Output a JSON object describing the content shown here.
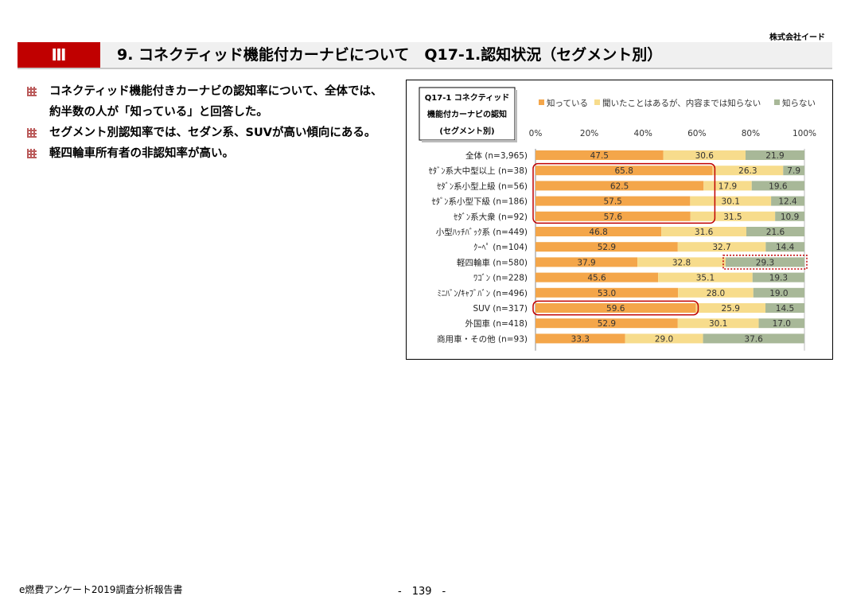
{
  "header": {
    "company": "株式会社イード",
    "section_no": "Ⅲ",
    "title": "9. コネクティッド機能付カーナビについて　Q17-1.認知状況（セグメント別）"
  },
  "bullets": [
    "コネクティッド機能付きカーナビの認知率について、全体では、約半数の人が「知っている」と回答した。",
    "セグメント別認知率では、セダン系、SUVが高い傾向にある。",
    "軽四輪車所有者の非認知率が高い。"
  ],
  "footer": {
    "left": "e燃費アンケート2019調査分析報告書",
    "page": "-　139　-"
  },
  "colors": {
    "accent_red": "#c00000",
    "aware": "#f4a64a",
    "heard": "#f7dc8c",
    "unaware": "#a8b898"
  },
  "chart_data": {
    "type": "bar",
    "orientation": "horizontal",
    "stacked": true,
    "title_lines": [
      "Q17-1 コネクティッド",
      "機能付カーナビの認知",
      "(セグメント別)"
    ],
    "x_ticks": [
      "0%",
      "20%",
      "40%",
      "60%",
      "80%",
      "100%"
    ],
    "xlim": [
      0,
      100
    ],
    "legend_position": "top",
    "categories": [
      "全体 (n=3,965)",
      "ｾﾀﾞﾝ系大中型以上 (n=38)",
      "ｾﾀﾞﾝ系小型上級 (n=56)",
      "ｾﾀﾞﾝ系小型下級 (n=186)",
      "ｾﾀﾞﾝ系大衆 (n=92)",
      "小型ﾊｯﾁﾊﾞｯｸ系 (n=449)",
      "ｸｰﾍﾟ (n=104)",
      "軽四輪車 (n=580)",
      "ﾜｺﾞﾝ (n=228)",
      "ﾐﾆﾊﾞﾝ/ｷｬﾌﾞﾊﾞﾝ (n=496)",
      "SUV (n=317)",
      "外国車 (n=418)",
      "商用車・その他 (n=93)"
    ],
    "series": [
      {
        "name": "知っている",
        "color": "#f4a64a",
        "values": [
          47.5,
          65.8,
          62.5,
          57.5,
          57.6,
          46.8,
          52.9,
          37.9,
          45.6,
          53.0,
          59.6,
          52.9,
          33.3
        ]
      },
      {
        "name": "聞いたことはあるが、内容までは知らない",
        "color": "#f7dc8c",
        "values": [
          30.6,
          26.3,
          17.9,
          30.1,
          31.5,
          31.6,
          32.7,
          32.8,
          35.1,
          28.0,
          25.9,
          30.1,
          29.0
        ]
      },
      {
        "name": "知らない",
        "color": "#a8b898",
        "values": [
          21.9,
          7.9,
          19.6,
          12.4,
          10.9,
          21.6,
          14.4,
          29.3,
          19.3,
          19.0,
          14.5,
          17.0,
          37.6
        ]
      }
    ],
    "highlights": [
      {
        "rows": [
          1,
          4
        ],
        "series": 0,
        "style": "solid",
        "color": "#c00000"
      },
      {
        "rows": [
          10,
          10
        ],
        "series": 0,
        "style": "solid",
        "color": "#c00000"
      },
      {
        "rows": [
          7,
          7
        ],
        "series": 2,
        "style": "dotted",
        "color": "#c00000"
      }
    ]
  }
}
